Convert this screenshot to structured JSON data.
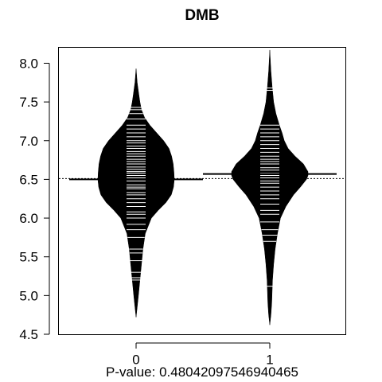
{
  "chart_data": {
    "type": "beanplot",
    "title": "DMB",
    "subtitle": "P-value: 0.48042097546940465",
    "categories": [
      "0",
      "1"
    ],
    "ylim": [
      4.5,
      8.2
    ],
    "yticks": [
      "4.5",
      "5.0",
      "5.5",
      "6.0",
      "6.5",
      "7.0",
      "7.5",
      "8.0"
    ],
    "overall_mean": 6.51,
    "series": [
      {
        "category": "0",
        "mean": 6.5,
        "density": [
          [
            4.72,
            0.0
          ],
          [
            4.85,
            0.03
          ],
          [
            5.0,
            0.06
          ],
          [
            5.2,
            0.1
          ],
          [
            5.4,
            0.14
          ],
          [
            5.6,
            0.18
          ],
          [
            5.8,
            0.24
          ],
          [
            6.0,
            0.4
          ],
          [
            6.1,
            0.58
          ],
          [
            6.2,
            0.78
          ],
          [
            6.3,
            0.92
          ],
          [
            6.4,
            0.98
          ],
          [
            6.5,
            1.0
          ],
          [
            6.6,
            0.99
          ],
          [
            6.7,
            0.97
          ],
          [
            6.8,
            0.93
          ],
          [
            6.9,
            0.86
          ],
          [
            7.0,
            0.72
          ],
          [
            7.1,
            0.54
          ],
          [
            7.2,
            0.36
          ],
          [
            7.3,
            0.22
          ],
          [
            7.4,
            0.14
          ],
          [
            7.5,
            0.1
          ],
          [
            7.6,
            0.07
          ],
          [
            7.75,
            0.03
          ],
          [
            7.93,
            0.0
          ]
        ],
        "points": [
          5.2,
          5.23,
          5.3,
          5.45,
          5.55,
          5.6,
          5.75,
          5.85,
          5.92,
          6.0,
          6.05,
          6.08,
          6.15,
          6.2,
          6.25,
          6.3,
          6.33,
          6.38,
          6.4,
          6.43,
          6.48,
          6.52,
          6.55,
          6.58,
          6.6,
          6.63,
          6.66,
          6.7,
          6.73,
          6.76,
          6.8,
          6.83,
          6.86,
          6.9,
          6.93,
          6.97,
          7.0,
          7.05,
          7.1,
          7.15,
          7.2,
          7.28,
          7.35,
          7.4,
          7.43
        ]
      },
      {
        "category": "1",
        "mean": 6.57,
        "density": [
          [
            4.62,
            0.0
          ],
          [
            4.75,
            0.03
          ],
          [
            4.9,
            0.05
          ],
          [
            5.05,
            0.06
          ],
          [
            5.2,
            0.07
          ],
          [
            5.4,
            0.1
          ],
          [
            5.6,
            0.14
          ],
          [
            5.8,
            0.2
          ],
          [
            6.0,
            0.28
          ],
          [
            6.15,
            0.42
          ],
          [
            6.3,
            0.62
          ],
          [
            6.4,
            0.8
          ],
          [
            6.5,
            0.96
          ],
          [
            6.55,
            1.0
          ],
          [
            6.6,
            1.0
          ],
          [
            6.7,
            0.88
          ],
          [
            6.8,
            0.66
          ],
          [
            6.9,
            0.48
          ],
          [
            7.0,
            0.38
          ],
          [
            7.1,
            0.32
          ],
          [
            7.2,
            0.25
          ],
          [
            7.35,
            0.16
          ],
          [
            7.5,
            0.1
          ],
          [
            7.7,
            0.06
          ],
          [
            7.9,
            0.03
          ],
          [
            8.17,
            0.0
          ]
        ],
        "points": [
          5.12,
          5.7,
          5.78,
          5.85,
          5.95,
          6.05,
          6.1,
          6.18,
          6.25,
          6.3,
          6.35,
          6.4,
          6.45,
          6.48,
          6.52,
          6.55,
          6.58,
          6.62,
          6.65,
          6.7,
          6.73,
          6.76,
          6.8,
          6.85,
          6.9,
          6.95,
          7.0,
          7.05,
          7.1,
          7.15,
          7.2,
          7.65,
          7.68
        ]
      }
    ]
  }
}
